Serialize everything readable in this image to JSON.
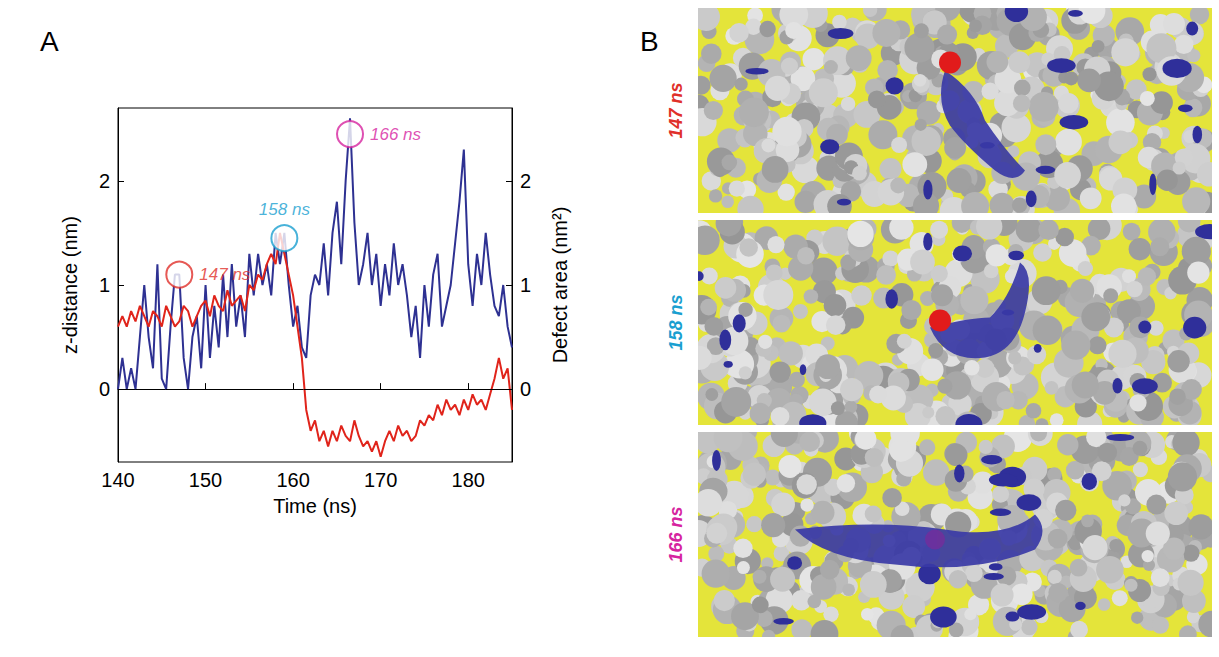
{
  "panel_labels": [
    "A",
    "B"
  ],
  "chart_data": {
    "type": "line",
    "x_label": "Time (ns)",
    "y_label": "z-distance (nm)",
    "y2_label": "Defect area (nm²)",
    "xlim": [
      140,
      185
    ],
    "xticks": [
      140,
      150,
      160,
      170,
      180
    ],
    "ylim": [
      -0.7,
      2.7
    ],
    "yticks": [
      0,
      1,
      2
    ],
    "y2lim": [
      -0.7,
      2.7
    ],
    "y2ticks": [
      0,
      1,
      2
    ],
    "grid": false,
    "x": [
      140,
      140.5,
      141,
      141.5,
      142,
      142.5,
      143,
      143.5,
      144,
      144.5,
      145,
      145.5,
      146,
      146.5,
      147,
      147.5,
      148,
      148.5,
      149,
      149.5,
      150,
      150.5,
      151,
      151.5,
      152,
      152.5,
      153,
      153.5,
      154,
      154.5,
      155,
      155.5,
      156,
      156.5,
      157,
      157.5,
      158,
      158.5,
      159,
      159.5,
      160,
      160.5,
      161,
      161.5,
      162,
      162.5,
      163,
      163.5,
      164,
      164.5,
      165,
      165.5,
      166,
      166.5,
      167,
      167.5,
      168,
      168.5,
      169,
      169.5,
      170,
      170.5,
      171,
      171.5,
      172,
      172.5,
      173,
      173.5,
      174,
      174.5,
      175,
      175.5,
      176,
      176.5,
      177,
      177.5,
      178,
      178.5,
      179,
      179.5,
      180,
      180.5,
      181,
      181.5,
      182,
      182.5,
      183,
      183.5,
      184,
      184.5,
      185
    ],
    "series": [
      {
        "color": "#2e3192",
        "axis": "y2",
        "values": [
          0,
          0.3,
          0,
          0.2,
          0,
          0.5,
          1.0,
          0.5,
          0.2,
          1.2,
          0.1,
          0,
          0.6,
          1.1,
          1.1,
          0.3,
          0,
          0.5,
          0.7,
          0.2,
          1.0,
          0.3,
          0.8,
          0.4,
          1.1,
          0.5,
          1.2,
          0.6,
          0.9,
          0.5,
          1.3,
          0.9,
          1.3,
          1.0,
          1.2,
          0.9,
          1.5,
          1.2,
          1.5,
          1.0,
          0.6,
          0.8,
          0.4,
          0.3,
          0.9,
          1.1,
          1.0,
          1.4,
          0.9,
          1.5,
          1.8,
          1.2,
          2.0,
          2.6,
          1.6,
          1.0,
          1.2,
          1.5,
          1.0,
          1.3,
          0.8,
          1.2,
          0.9,
          1.4,
          1.0,
          1.2,
          0.9,
          0.5,
          0.8,
          0.3,
          1.0,
          0.6,
          1.1,
          1.3,
          0.6,
          0.8,
          1.0,
          1.4,
          1.8,
          2.3,
          1.2,
          0.8,
          1.3,
          1.0,
          1.5,
          1.1,
          0.8,
          0.7,
          1.0,
          0.6,
          0.4
        ]
      },
      {
        "color": "#e0241b",
        "values": [
          0.6,
          0.7,
          0.6,
          0.75,
          0.65,
          0.8,
          0.7,
          0.6,
          0.75,
          0.7,
          0.6,
          0.8,
          0.7,
          0.6,
          0.65,
          0.8,
          0.75,
          0.6,
          0.7,
          0.8,
          0.85,
          0.7,
          0.9,
          0.8,
          0.75,
          0.95,
          0.8,
          0.85,
          0.9,
          0.75,
          1.0,
          0.95,
          1.1,
          1.05,
          1.2,
          1.3,
          1.2,
          1.5,
          1.3,
          1.1,
          0.9,
          0.6,
          0.3,
          -0.2,
          -0.4,
          -0.3,
          -0.5,
          -0.4,
          -0.55,
          -0.4,
          -0.5,
          -0.35,
          -0.45,
          -0.5,
          -0.3,
          -0.45,
          -0.55,
          -0.5,
          -0.6,
          -0.5,
          -0.65,
          -0.5,
          -0.4,
          -0.5,
          -0.35,
          -0.45,
          -0.4,
          -0.5,
          -0.45,
          -0.3,
          -0.35,
          -0.25,
          -0.3,
          -0.15,
          -0.25,
          -0.1,
          -0.2,
          -0.15,
          -0.25,
          -0.1,
          -0.2,
          -0.05,
          -0.15,
          -0.1,
          -0.2,
          -0.05,
          0.1,
          0.3,
          0.1,
          0.2,
          -0.2
        ]
      }
    ],
    "reference_lines": [
      {
        "y": 0,
        "line_style": "dashed"
      }
    ],
    "annotations": [
      {
        "text": "147 ns",
        "x": 147,
        "y": 1.1,
        "color": "#e0302a"
      },
      {
        "text": "158 ns",
        "x": 159,
        "y": 1.45,
        "color": "#1a9fd0"
      },
      {
        "text": "166 ns",
        "x": 166.5,
        "y": 2.45,
        "color": "#d6249f"
      }
    ]
  },
  "snapshots": [
    {
      "label": "147 ns",
      "color": "#e0302a"
    },
    {
      "label": "158 ns",
      "color": "#1a9fd0"
    },
    {
      "label": "166 ns",
      "color": "#d6249f"
    }
  ]
}
